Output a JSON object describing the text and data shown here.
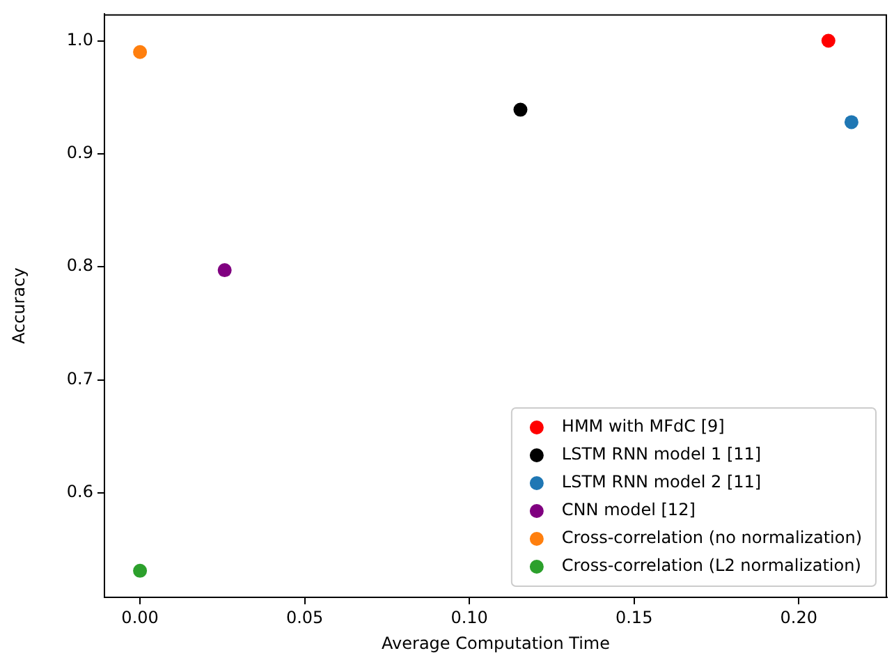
{
  "chart_data": {
    "type": "scatter",
    "xlabel": "Average Computation Time",
    "ylabel": "Accuracy",
    "xlim": [
      -0.0108,
      0.2268
    ],
    "ylim": [
      0.5075,
      1.0235
    ],
    "xticks": [
      {
        "value": 0,
        "label": "0.00"
      },
      {
        "value": 0.05,
        "label": "0.05"
      },
      {
        "value": 0.1,
        "label": "0.10"
      },
      {
        "value": 0.15,
        "label": "0.15"
      },
      {
        "value": 0.2,
        "label": "0.20"
      }
    ],
    "yticks": [
      {
        "value": 0.6,
        "label": "0.6"
      },
      {
        "value": 0.7,
        "label": "0.7"
      },
      {
        "value": 0.8,
        "label": "0.8"
      },
      {
        "value": 0.9,
        "label": "0.9"
      },
      {
        "value": 1.0,
        "label": "1.0"
      }
    ],
    "grid": false,
    "legend": "bottom right",
    "marker": "circle",
    "series": [
      {
        "name": "HMM with MFdC [9]",
        "color": "#ff0000",
        "x": [
          0.209
        ],
        "values": [
          1.0
        ]
      },
      {
        "name": "LSTM RNN model 1 [11]",
        "color": "#000000",
        "x": [
          0.1155
        ],
        "values": [
          0.939
        ]
      },
      {
        "name": "LSTM RNN model 2 [11]",
        "color": "#1f77b4",
        "x": [
          0.216
        ],
        "values": [
          0.928
        ]
      },
      {
        "name": "CNN model [12]",
        "color": "#800080",
        "x": [
          0.0257
        ],
        "values": [
          0.797
        ]
      },
      {
        "name": "Cross-correlation (no normalization)",
        "color": "#ff7f0e",
        "x": [
          0
        ],
        "values": [
          0.99
        ]
      },
      {
        "name": "Cross-correlation (L2 normalization)",
        "color": "#2ca02c",
        "x": [
          0
        ],
        "values": [
          0.531
        ]
      }
    ]
  }
}
